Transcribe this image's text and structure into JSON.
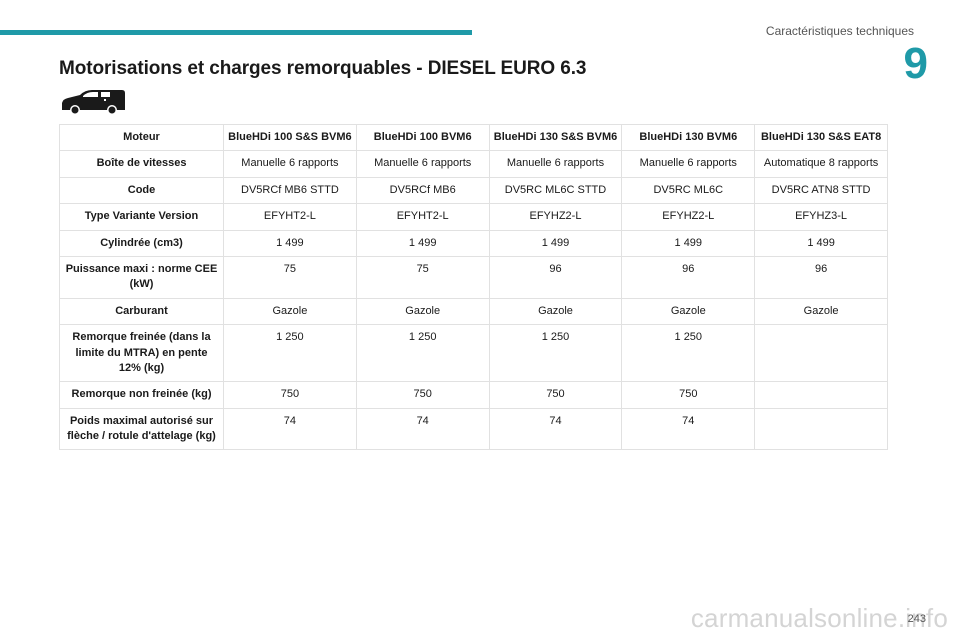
{
  "header": {
    "section_title": "Caractéristiques techniques",
    "chapter_number": "9"
  },
  "page": {
    "heading": "Motorisations et charges remorquables - DIESEL EURO 6.3",
    "page_number": "243",
    "watermark": "carmanualsonline.info"
  },
  "colors": {
    "accent": "#1f9aa8"
  },
  "icons": {
    "vehicle": "van-icon"
  },
  "table": {
    "header": [
      "Moteur",
      "BlueHDi 100 S&S BVM6",
      "BlueHDi 100 BVM6",
      "BlueHDi 130 S&S BVM6",
      "BlueHDi 130 BVM6",
      "BlueHDi 130 S&S EAT8"
    ],
    "rows": [
      [
        "Boîte de vitesses",
        "Manuelle 6 rapports",
        "Manuelle 6 rapports",
        "Manuelle 6 rapports",
        "Manuelle 6 rapports",
        "Automatique 8 rapports"
      ],
      [
        "Code",
        "DV5RCf MB6 STTD",
        "DV5RCf MB6",
        "DV5RC ML6C STTD",
        "DV5RC ML6C",
        "DV5RC ATN8 STTD"
      ],
      [
        "Type Variante Version",
        "EFYHT2-L",
        "EFYHT2-L",
        "EFYHZ2-L",
        "EFYHZ2-L",
        "EFYHZ3-L"
      ],
      [
        "Cylindrée (cm3)",
        "1 499",
        "1 499",
        "1 499",
        "1 499",
        "1 499"
      ],
      [
        "Puissance maxi : norme CEE (kW)",
        "75",
        "75",
        "96",
        "96",
        "96"
      ],
      [
        "Carburant",
        "Gazole",
        "Gazole",
        "Gazole",
        "Gazole",
        "Gazole"
      ],
      [
        "Remorque freinée (dans la limite du MTRA) en pente 12% (kg)",
        "1 250",
        "1 250",
        "1 250",
        "1 250",
        ""
      ],
      [
        "Remorque non freinée (kg)",
        "750",
        "750",
        "750",
        "750",
        ""
      ],
      [
        "Poids maximal autorisé sur flèche / rotule d'attelage (kg)",
        "74",
        "74",
        "74",
        "74",
        ""
      ]
    ]
  }
}
